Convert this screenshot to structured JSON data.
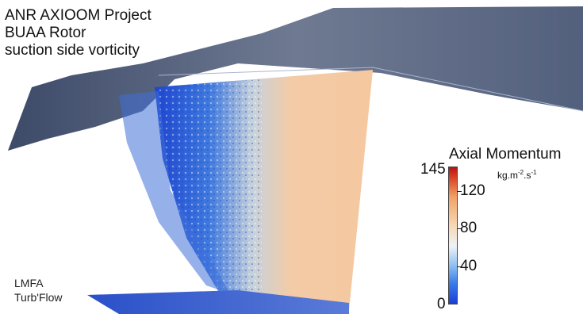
{
  "title_lines": [
    "ANR AXIOOM Project",
    "BUAA Rotor",
    "suction side vorticity"
  ],
  "credits": [
    "LMFA",
    "Turb'Flow"
  ],
  "colorbar": {
    "title": "Axial Momentum",
    "unit_base": "kg.m",
    "unit_exp1": "-2",
    "unit_mid": ".s",
    "unit_exp2": "-1",
    "min_label": "0",
    "max_label": "145",
    "ticks": [
      "40",
      "80",
      "120"
    ],
    "range": [
      0,
      145
    ],
    "tick_values": [
      40,
      80,
      120
    ],
    "colors": [
      "#1a3fd6",
      "#3a7de8",
      "#8fc0f2",
      "#eef2f4",
      "#f6d6b4",
      "#f1a266",
      "#d9442a",
      "#b81414"
    ]
  },
  "surface_colors": {
    "casing": "#5d6a86",
    "blade_warm": "#f1c39c",
    "blade_cool": "#2f63d3"
  }
}
